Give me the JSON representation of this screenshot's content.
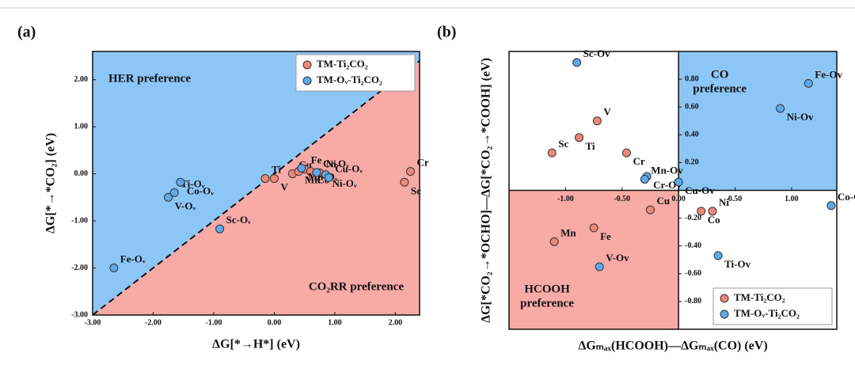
{
  "chart_data": [
    {
      "type": "scatter",
      "panel": "(a)",
      "xlabel": "ΔG[*→H*] (eV)",
      "ylabel": "ΔG[*→*CO₂] (eV)",
      "xlim": [
        -3,
        2.4
      ],
      "ylim": [
        -3,
        2.6
      ],
      "xticks": [
        {
          "value": -3,
          "label": "-3.00"
        },
        {
          "value": -2,
          "label": "-2.00"
        },
        {
          "value": -1,
          "label": "-1.00"
        },
        {
          "value": 0,
          "label": "0.00"
        },
        {
          "value": 1,
          "label": "1.00"
        },
        {
          "value": 2,
          "label": "2.00"
        }
      ],
      "yticks": [
        {
          "value": -3,
          "label": "-3.00"
        },
        {
          "value": -2,
          "label": "-2.00"
        },
        {
          "value": -1,
          "label": "-1.00"
        },
        {
          "value": 0,
          "label": "0.00"
        },
        {
          "value": 1,
          "label": "1.00"
        },
        {
          "value": 2,
          "label": "2.00"
        }
      ],
      "regions": "diagonal",
      "fill_colors": [
        "#8cc6f7",
        "#f7aaa6"
      ],
      "legend": "upper right",
      "annotations": [
        [
          "HER preference"
        ],
        [
          "CO₂RR preference"
        ]
      ],
      "series": [
        {
          "name": "TM-Ti₂CO₂",
          "color": "#ef8677",
          "labels": [
            "Ti",
            "V",
            "Cu",
            "Mn",
            "Fe",
            "Co",
            "Ni",
            "Sc",
            "Cr"
          ],
          "x": [
            -0.15,
            0.0,
            0.3,
            0.4,
            0.5,
            0.6,
            0.75,
            2.15,
            2.25
          ],
          "values": [
            -0.1,
            -0.1,
            0.0,
            0.05,
            0.1,
            0.05,
            0.02,
            -0.18,
            0.05
          ]
        },
        {
          "name": "TM-Oᵥ-Ti₂CO₂",
          "color": "#5ea9ea",
          "labels": [
            "Fe-Oᵥ",
            "V-Oᵥ",
            "Ti-Oᵥ",
            "Co-Oᵥ",
            "Sc-Oᵥ",
            "Mn-Oᵥ",
            "Cr-Oᵥ",
            "Ni-Oᵥ",
            "Cu-Oᵥ"
          ],
          "x": [
            -2.65,
            -1.75,
            -1.65,
            -1.55,
            -0.9,
            0.45,
            0.7,
            0.85,
            0.9
          ],
          "values": [
            -2.0,
            -0.5,
            -0.4,
            -0.18,
            -1.17,
            0.12,
            0.03,
            -0.02,
            -0.08
          ]
        }
      ]
    },
    {
      "type": "scatter",
      "panel": "(b)",
      "xlabel": "ΔGₘₐₓ(HCOOH)—ΔGₘₐₓ(CO) (eV)",
      "ylabel": "ΔG[*CO₂→*OCHO]—ΔG[*CO₂→*COOH] (eV)",
      "xlim": [
        -1.5,
        1.4
      ],
      "ylim": [
        -1,
        1
      ],
      "xticks": [
        {
          "value": -1,
          "label": "-1.00"
        },
        {
          "value": -0.5,
          "label": "-0.50"
        },
        {
          "value": 0,
          "label": "0.00"
        },
        {
          "value": 0.5,
          "label": "0.50"
        },
        {
          "value": 1,
          "label": "1.00"
        }
      ],
      "yticks": [
        {
          "value": 0.8,
          "label": "0.80"
        },
        {
          "value": 0.6,
          "label": "0.60"
        },
        {
          "value": 0.4,
          "label": "0.40"
        },
        {
          "value": 0.2,
          "label": "0.20"
        },
        {
          "value": -0.2,
          "label": "-0.20"
        },
        {
          "value": -0.4,
          "label": "-0.40"
        },
        {
          "value": -0.6,
          "label": "-0.60"
        },
        {
          "value": -0.8,
          "label": "-0.80"
        }
      ],
      "regions": "quadrants",
      "fill_colors": [
        "#8cc6f7",
        "#f7aaa6"
      ],
      "legend": "lower right",
      "annotations": [
        [
          "CO",
          "preference"
        ],
        [
          "HCOOH",
          "preference"
        ]
      ],
      "series": [
        {
          "name": "TM-Ti₂CO₂",
          "color": "#ef8677",
          "labels": [
            "Sc",
            "Ti",
            "V",
            "Cr",
            "Cu",
            "Fe",
            "Mn",
            "Co",
            "Ni"
          ],
          "x": [
            -1.12,
            -0.88,
            -0.72,
            -0.46,
            -0.25,
            -0.75,
            -1.1,
            0.2,
            0.3
          ],
          "values": [
            0.27,
            0.38,
            0.5,
            0.27,
            -0.14,
            -0.27,
            -0.37,
            -0.15,
            -0.15
          ]
        },
        {
          "name": "TM-Oᵥ-Ti₂CO₂",
          "color": "#5ea9ea",
          "labels": [
            "Sc-Ov",
            "Cr-Ov",
            "Mn-Ov",
            "Cu-Ov",
            "Fe-Ov",
            "Ni-Ov",
            "Co-Ov",
            "Ti-Ov",
            "V-Ov"
          ],
          "x": [
            -0.9,
            -0.28,
            -0.3,
            0.0,
            1.15,
            0.9,
            1.35,
            0.35,
            -0.7
          ],
          "values": [
            0.92,
            0.1,
            0.08,
            0.06,
            0.77,
            0.59,
            -0.11,
            -0.47,
            -0.55
          ]
        }
      ]
    }
  ]
}
